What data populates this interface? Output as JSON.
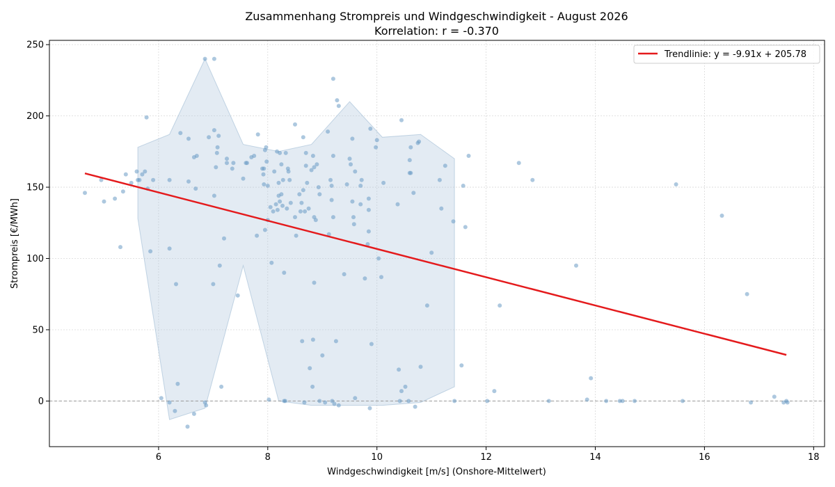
{
  "chart_data": {
    "type": "scatter",
    "title": "Zusammenhang Strompreis und Windgeschwindigkeit - August 2026",
    "subtitle": "Korrelation: r = -0.370",
    "xlabel": "Windgeschwindigkeit [m/s] (Onshore-Mittelwert)",
    "ylabel": "Strompreis [€/MWh]",
    "xlim": [
      4.0,
      18.2
    ],
    "ylim": [
      -32,
      253
    ],
    "xticks": [
      6,
      8,
      10,
      12,
      14,
      16,
      18
    ],
    "yticks": [
      0,
      50,
      100,
      150,
      200,
      250
    ],
    "grid": true,
    "zero_line": true,
    "legend_position": "top-right",
    "colors": {
      "points": "#6a9ac4",
      "trend": "#e41a1c",
      "band": "#b0c6dc",
      "band_edge": "#9fbad4",
      "zero_line": "#999999"
    },
    "trendline": {
      "label": "Trendlinie: y = -9.91x + 205.78",
      "slope": -9.91,
      "intercept": 205.78,
      "x_range": [
        4.65,
        17.5
      ]
    },
    "band": {
      "x": [
        5.62,
        6.2,
        6.85,
        7.55,
        8.2,
        8.8,
        9.5,
        10.1,
        10.8,
        11.42
      ],
      "upper": [
        178,
        187,
        240,
        180,
        175,
        180,
        210,
        185,
        187,
        170
      ],
      "lower": [
        128,
        -13,
        -5,
        95,
        0,
        -3,
        -3,
        -3,
        -1,
        10
      ]
    },
    "points": [
      [
        4.65,
        146
      ],
      [
        4.95,
        155
      ],
      [
        5.0,
        140
      ],
      [
        5.2,
        142
      ],
      [
        5.3,
        108
      ],
      [
        5.35,
        147
      ],
      [
        5.4,
        159
      ],
      [
        5.5,
        153
      ],
      [
        5.6,
        161
      ],
      [
        5.62,
        155
      ],
      [
        5.65,
        155
      ],
      [
        5.7,
        159
      ],
      [
        5.75,
        161
      ],
      [
        5.78,
        199
      ],
      [
        5.85,
        105
      ],
      [
        5.9,
        155
      ],
      [
        5.8,
        149
      ],
      [
        6.05,
        2
      ],
      [
        6.2,
        -1
      ],
      [
        6.2,
        155
      ],
      [
        6.2,
        107
      ],
      [
        6.3,
        -7
      ],
      [
        6.32,
        82
      ],
      [
        6.35,
        12
      ],
      [
        6.4,
        188
      ],
      [
        6.53,
        -18
      ],
      [
        6.55,
        184
      ],
      [
        6.55,
        154
      ],
      [
        6.65,
        171
      ],
      [
        6.65,
        -9
      ],
      [
        6.68,
        149
      ],
      [
        6.7,
        172
      ],
      [
        6.85,
        240
      ],
      [
        6.85,
        -1
      ],
      [
        6.87,
        -3
      ],
      [
        6.92,
        185
      ],
      [
        7.0,
        82
      ],
      [
        7.02,
        240
      ],
      [
        7.02,
        190
      ],
      [
        7.02,
        144
      ],
      [
        7.05,
        164
      ],
      [
        7.07,
        174
      ],
      [
        7.08,
        178
      ],
      [
        7.1,
        186
      ],
      [
        7.12,
        95
      ],
      [
        7.15,
        10
      ],
      [
        7.2,
        114
      ],
      [
        7.25,
        167
      ],
      [
        7.25,
        170
      ],
      [
        7.35,
        163
      ],
      [
        7.37,
        167
      ],
      [
        7.45,
        74
      ],
      [
        7.55,
        156
      ],
      [
        7.6,
        167
      ],
      [
        7.62,
        167
      ],
      [
        7.7,
        171
      ],
      [
        7.75,
        172
      ],
      [
        7.8,
        116
      ],
      [
        7.82,
        187
      ],
      [
        7.9,
        163
      ],
      [
        7.92,
        159
      ],
      [
        7.93,
        163
      ],
      [
        7.93,
        152
      ],
      [
        7.95,
        120
      ],
      [
        7.95,
        176
      ],
      [
        7.97,
        178
      ],
      [
        7.98,
        168
      ],
      [
        8.0,
        151
      ],
      [
        8.0,
        127
      ],
      [
        8.02,
        1
      ],
      [
        8.05,
        136
      ],
      [
        8.07,
        97
      ],
      [
        8.1,
        133
      ],
      [
        8.12,
        161
      ],
      [
        8.15,
        138
      ],
      [
        8.17,
        175
      ],
      [
        8.18,
        134
      ],
      [
        8.2,
        153
      ],
      [
        8.2,
        144
      ],
      [
        8.22,
        174
      ],
      [
        8.22,
        140
      ],
      [
        8.25,
        166
      ],
      [
        8.25,
        145
      ],
      [
        8.27,
        137
      ],
      [
        8.28,
        155
      ],
      [
        8.3,
        0
      ],
      [
        8.3,
        90
      ],
      [
        8.32,
        0
      ],
      [
        8.33,
        174
      ],
      [
        8.35,
        135
      ],
      [
        8.37,
        163
      ],
      [
        8.38,
        161
      ],
      [
        8.4,
        155
      ],
      [
        8.42,
        139
      ],
      [
        8.5,
        129
      ],
      [
        8.5,
        194
      ],
      [
        8.52,
        116
      ],
      [
        8.58,
        145
      ],
      [
        8.6,
        133
      ],
      [
        8.62,
        139
      ],
      [
        8.63,
        42
      ],
      [
        8.65,
        148
      ],
      [
        8.65,
        185
      ],
      [
        8.67,
        -1
      ],
      [
        8.68,
        133
      ],
      [
        8.7,
        174
      ],
      [
        8.7,
        165
      ],
      [
        8.72,
        153
      ],
      [
        8.75,
        135
      ],
      [
        8.77,
        23
      ],
      [
        8.8,
        162
      ],
      [
        8.82,
        10
      ],
      [
        8.83,
        172
      ],
      [
        8.83,
        43
      ],
      [
        8.85,
        129
      ],
      [
        8.85,
        164
      ],
      [
        8.85,
        83
      ],
      [
        8.88,
        127
      ],
      [
        8.9,
        166
      ],
      [
        8.93,
        150
      ],
      [
        8.95,
        145
      ],
      [
        8.95,
        0
      ],
      [
        9.0,
        32
      ],
      [
        9.05,
        -1
      ],
      [
        9.1,
        189
      ],
      [
        9.12,
        117
      ],
      [
        9.15,
        155
      ],
      [
        9.17,
        141
      ],
      [
        9.17,
        151
      ],
      [
        9.18,
        0
      ],
      [
        9.2,
        172
      ],
      [
        9.2,
        129
      ],
      [
        9.22,
        -2
      ],
      [
        9.25,
        42
      ],
      [
        9.27,
        211
      ],
      [
        9.3,
        207
      ],
      [
        9.3,
        -3
      ],
      [
        9.2,
        226
      ],
      [
        9.4,
        89
      ],
      [
        9.45,
        152
      ],
      [
        9.5,
        170
      ],
      [
        9.52,
        166
      ],
      [
        9.55,
        140
      ],
      [
        9.55,
        184
      ],
      [
        9.57,
        129
      ],
      [
        9.58,
        124
      ],
      [
        9.6,
        161
      ],
      [
        9.6,
        2
      ],
      [
        9.7,
        138
      ],
      [
        9.7,
        151
      ],
      [
        9.72,
        155
      ],
      [
        9.78,
        86
      ],
      [
        9.83,
        110
      ],
      [
        9.85,
        142
      ],
      [
        9.85,
        134
      ],
      [
        9.85,
        119
      ],
      [
        9.87,
        -5
      ],
      [
        9.88,
        191
      ],
      [
        9.9,
        40
      ],
      [
        9.98,
        178
      ],
      [
        10.0,
        183
      ],
      [
        10.03,
        100
      ],
      [
        10.08,
        87
      ],
      [
        10.12,
        153
      ],
      [
        10.38,
        138
      ],
      [
        10.4,
        22
      ],
      [
        10.42,
        0
      ],
      [
        10.45,
        7
      ],
      [
        10.45,
        197
      ],
      [
        10.52,
        10
      ],
      [
        10.58,
        0
      ],
      [
        10.6,
        160
      ],
      [
        10.6,
        169
      ],
      [
        10.62,
        178
      ],
      [
        10.62,
        160
      ],
      [
        10.67,
        146
      ],
      [
        10.7,
        -4
      ],
      [
        10.75,
        181
      ],
      [
        10.77,
        182
      ],
      [
        10.8,
        24
      ],
      [
        10.92,
        67
      ],
      [
        11.0,
        104
      ],
      [
        11.15,
        155
      ],
      [
        11.18,
        135
      ],
      [
        11.25,
        165
      ],
      [
        11.4,
        126
      ],
      [
        11.42,
        0
      ],
      [
        11.55,
        25
      ],
      [
        11.58,
        151
      ],
      [
        11.62,
        122
      ],
      [
        11.68,
        172
      ],
      [
        12.02,
        0
      ],
      [
        12.15,
        7
      ],
      [
        12.25,
        67
      ],
      [
        12.6,
        167
      ],
      [
        12.85,
        155
      ],
      [
        13.15,
        0
      ],
      [
        13.65,
        95
      ],
      [
        13.85,
        1
      ],
      [
        13.92,
        16
      ],
      [
        14.2,
        0
      ],
      [
        14.45,
        0
      ],
      [
        14.5,
        0
      ],
      [
        14.72,
        0
      ],
      [
        15.48,
        152
      ],
      [
        15.6,
        0
      ],
      [
        16.32,
        130
      ],
      [
        16.78,
        75
      ],
      [
        16.85,
        -1
      ],
      [
        17.28,
        3
      ],
      [
        17.45,
        -1
      ],
      [
        17.5,
        0
      ],
      [
        17.52,
        -1
      ]
    ]
  }
}
